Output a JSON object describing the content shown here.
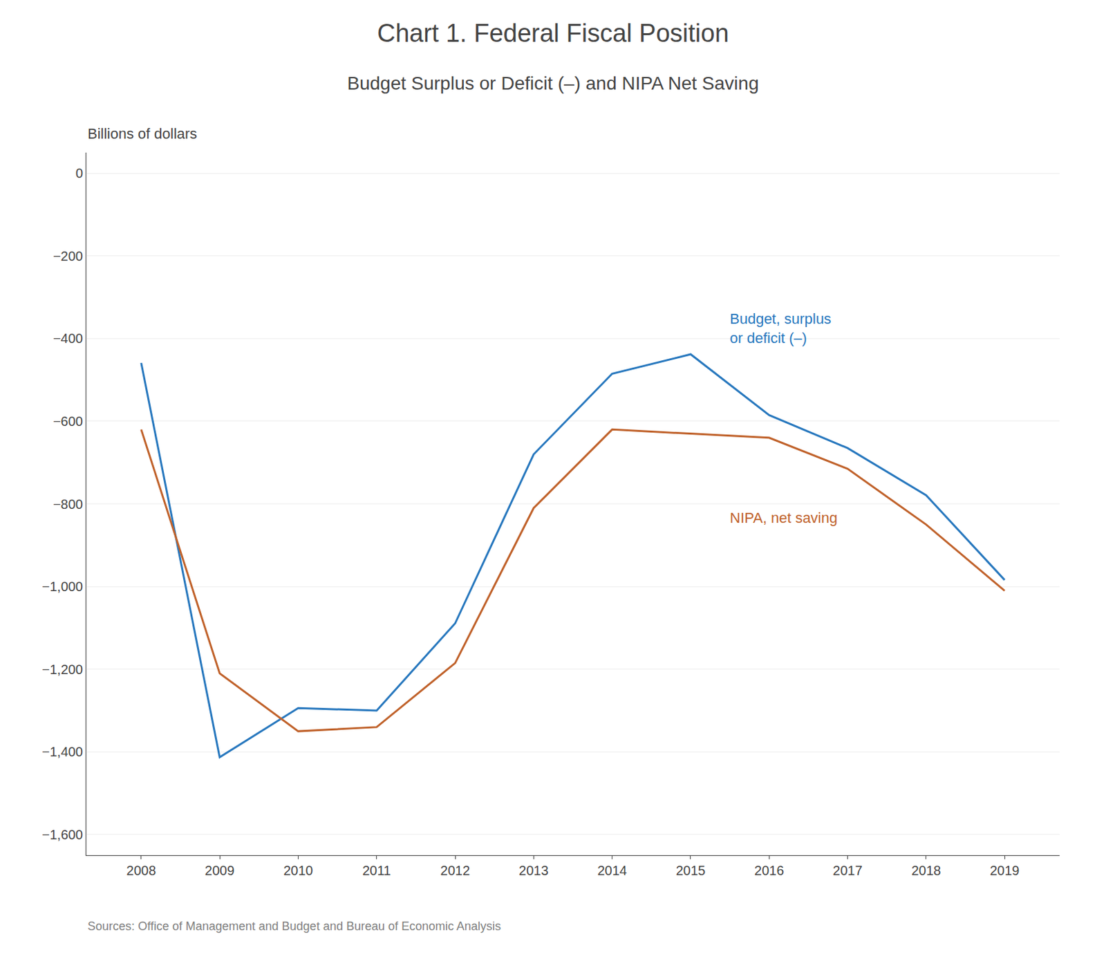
{
  "chart_data": {
    "type": "line",
    "title": "Chart 1. Federal Fiscal Position",
    "subtitle": "Budget Surplus or Deficit (–) and NIPA Net Saving",
    "ylabel": "Billions of dollars",
    "source": "Sources: Office of Management and Budget and Bureau of Economic Analysis",
    "x": [
      2008,
      2009,
      2010,
      2011,
      2012,
      2013,
      2014,
      2015,
      2016,
      2017,
      2018,
      2019
    ],
    "series": [
      {
        "name": "Budget, surplus\nor deficit (–)",
        "color": "#2878BE",
        "values": [
          -459,
          -1413,
          -1294,
          -1300,
          -1089,
          -680,
          -485,
          -438,
          -585,
          -665,
          -779,
          -984
        ]
      },
      {
        "name": "NIPA, net saving",
        "color": "#C0622B",
        "values": [
          -620,
          -1210,
          -1350,
          -1340,
          -1185,
          -810,
          -620,
          -630,
          -640,
          -715,
          -850,
          -1010
        ]
      }
    ],
    "xlim": [
      2007.3,
      2019.7
    ],
    "xticks": [
      2008,
      2009,
      2010,
      2011,
      2012,
      2013,
      2014,
      2015,
      2016,
      2017,
      2018,
      2019
    ],
    "ylim": [
      -1650,
      50
    ],
    "yticks": [
      0,
      {
        "value": -200,
        "label": "−200"
      },
      {
        "value": -400,
        "label": "−400"
      },
      {
        "value": -600,
        "label": "−600"
      },
      {
        "value": -800,
        "label": "−800"
      },
      {
        "value": -1000,
        "label": "−1,000"
      },
      {
        "value": -1200,
        "label": "−1,200"
      },
      {
        "value": -1400,
        "label": "−1,400"
      },
      {
        "value": -1600,
        "label": "−1,600"
      }
    ],
    "grid": true
  }
}
